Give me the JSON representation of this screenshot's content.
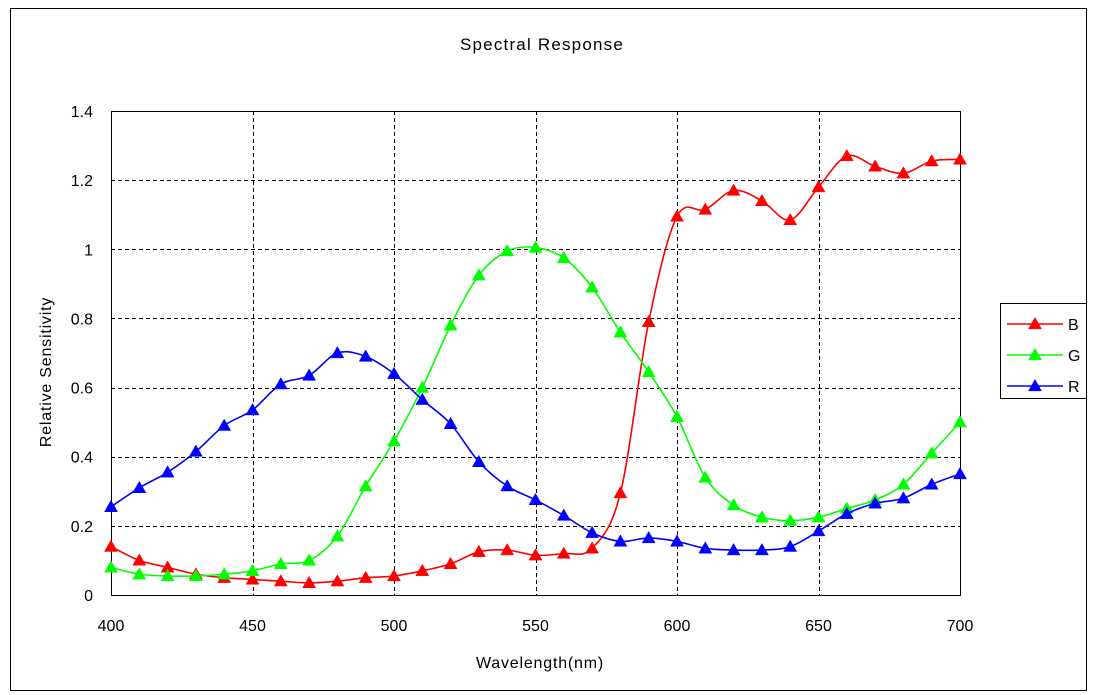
{
  "chart_data": {
    "type": "line",
    "title": "Spectral Response",
    "xlabel": "Wavelength(nm)",
    "ylabel": "Relative Sensitivity",
    "xlim": [
      400,
      700
    ],
    "ylim": [
      0,
      1.4
    ],
    "x_ticks": [
      "400",
      "450",
      "500",
      "550",
      "600",
      "650",
      "700"
    ],
    "y_ticks": [
      "0",
      "0.2",
      "0.4",
      "0.6",
      "0.8",
      "1",
      "1.2",
      "1.4"
    ],
    "grid": true,
    "legend_position": "right",
    "marker": "triangle",
    "x": [
      400,
      410,
      420,
      430,
      440,
      450,
      460,
      470,
      480,
      490,
      500,
      510,
      520,
      530,
      540,
      550,
      560,
      570,
      580,
      590,
      600,
      610,
      620,
      630,
      640,
      650,
      660,
      670,
      680,
      690,
      700
    ],
    "series": [
      {
        "name": "B",
        "color": "#ff0000",
        "values": [
          0.14,
          0.1,
          0.08,
          0.06,
          0.05,
          0.045,
          0.04,
          0.035,
          0.04,
          0.05,
          0.055,
          0.07,
          0.09,
          0.125,
          0.13,
          0.115,
          0.12,
          0.135,
          0.295,
          0.79,
          1.095,
          1.115,
          1.17,
          1.14,
          1.085,
          1.18,
          1.27,
          1.24,
          1.22,
          1.255,
          1.26
        ]
      },
      {
        "name": "G",
        "color": "#00ff00",
        "values": [
          0.08,
          0.06,
          0.055,
          0.055,
          0.06,
          0.07,
          0.09,
          0.1,
          0.17,
          0.315,
          0.445,
          0.6,
          0.78,
          0.925,
          0.995,
          1.005,
          0.975,
          0.89,
          0.76,
          0.645,
          0.515,
          0.34,
          0.26,
          0.225,
          0.215,
          0.225,
          0.25,
          0.275,
          0.32,
          0.41,
          0.5
        ]
      },
      {
        "name": "R",
        "color": "#0000ff",
        "values": [
          0.255,
          0.31,
          0.355,
          0.415,
          0.49,
          0.535,
          0.61,
          0.635,
          0.7,
          0.69,
          0.64,
          0.565,
          0.495,
          0.385,
          0.315,
          0.275,
          0.23,
          0.18,
          0.155,
          0.165,
          0.155,
          0.135,
          0.13,
          0.13,
          0.14,
          0.185,
          0.235,
          0.265,
          0.28,
          0.32,
          0.35
        ]
      }
    ]
  }
}
